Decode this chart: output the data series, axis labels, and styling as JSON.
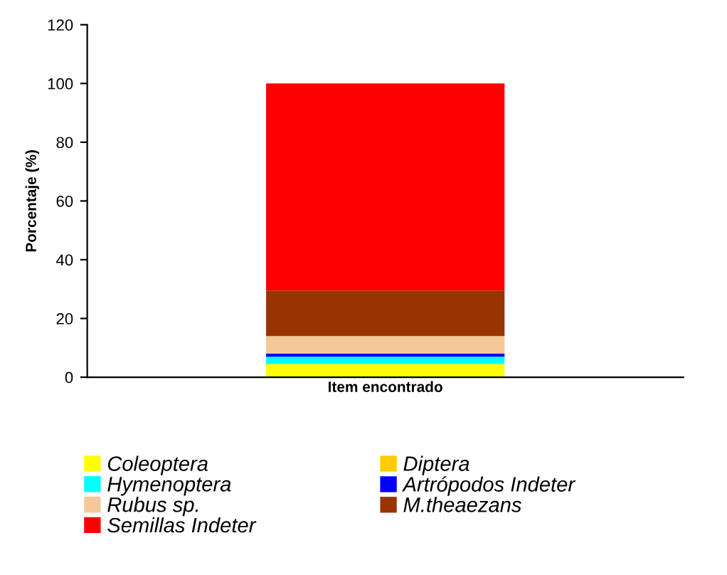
{
  "chart_data": {
    "type": "bar",
    "stacked": true,
    "ylabel": "Porcentaje (%)",
    "categories": [
      "Item encontrado"
    ],
    "series": [
      {
        "name": "Coleoptera",
        "color": "#ffff00",
        "values": [
          4.5
        ]
      },
      {
        "name": "Diptera",
        "color": "#ffcc00",
        "values": [
          0
        ]
      },
      {
        "name": "Hymenoptera",
        "color": "#00ffff",
        "values": [
          2.5
        ]
      },
      {
        "name": "Artrópodos Indeter",
        "color": "#0000ff",
        "values": [
          1
        ]
      },
      {
        "name": "Rubus sp.",
        "color": "#f5c898",
        "values": [
          6
        ]
      },
      {
        "name": "M.theaezans",
        "color": "#993300",
        "values": [
          15.5
        ]
      },
      {
        "name": "Semillas Indeter",
        "color": "#ff0000",
        "values": [
          70.5
        ]
      }
    ],
    "ylim": [
      0,
      120
    ],
    "yticks": [
      0,
      20,
      40,
      60,
      80,
      100,
      120
    ],
    "grid": false,
    "legend": "bottom"
  }
}
